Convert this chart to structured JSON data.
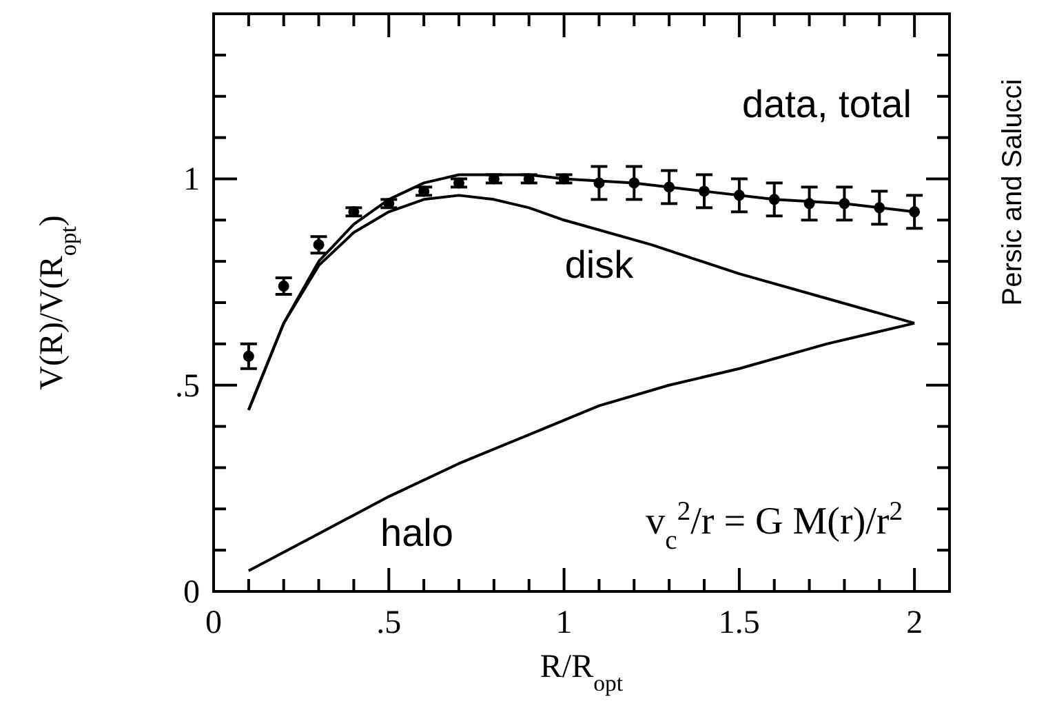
{
  "chart_data": {
    "type": "scatter",
    "xlabel": "R/R$_{opt}$",
    "ylabel": "V(R)/V(R$_{opt}$)",
    "xlim": [
      0,
      2.1
    ],
    "ylim": [
      0,
      1.4
    ],
    "xticks": [
      0,
      {
        "value": 0.1,
        "label": null
      },
      {
        "value": 0.2,
        "label": null
      },
      {
        "value": 0.3,
        "label": null
      },
      {
        "value": 0.4,
        "label": null
      },
      {
        "value": 0.5,
        "label": ".5"
      },
      {
        "value": 0.6,
        "label": null
      },
      {
        "value": 0.7,
        "label": null
      },
      {
        "value": 0.8,
        "label": null
      },
      {
        "value": 0.9,
        "label": null
      },
      1,
      {
        "value": 1.1,
        "label": null
      },
      {
        "value": 1.2,
        "label": null
      },
      {
        "value": 1.3,
        "label": null
      },
      {
        "value": 1.4,
        "label": null
      },
      1.5,
      {
        "value": 1.6,
        "label": null
      },
      {
        "value": 1.7,
        "label": null
      },
      {
        "value": 1.8,
        "label": null
      },
      {
        "value": 1.9,
        "label": null
      },
      2,
      {
        "value": 2.1,
        "label": null
      }
    ],
    "yticks": [
      0,
      {
        "value": 0.1,
        "label": null
      },
      {
        "value": 0.2,
        "label": null
      },
      {
        "value": 0.3,
        "label": null
      },
      {
        "value": 0.4,
        "label": null
      },
      {
        "value": 0.5,
        "label": ".5"
      },
      {
        "value": 0.6,
        "label": null
      },
      {
        "value": 0.7,
        "label": null
      },
      {
        "value": 0.8,
        "label": null
      },
      {
        "value": 0.9,
        "label": null
      },
      1,
      {
        "value": 1.1,
        "label": null
      },
      {
        "value": 1.2,
        "label": null
      },
      {
        "value": 1.3,
        "label": null
      },
      {
        "value": 1.4,
        "label": null
      }
    ],
    "series": [
      {
        "type": "line",
        "color": "#000000",
        "x": [
          0.1,
          0.2,
          0.3,
          0.4,
          0.5,
          0.6,
          0.7,
          0.8,
          0.9,
          1.0,
          1.2,
          1.4,
          1.6,
          1.8,
          2.0
        ],
        "values": [
          0.44,
          0.65,
          0.8,
          0.89,
          0.95,
          0.99,
          1.01,
          1.01,
          1.01,
          1.0,
          0.99,
          0.97,
          0.95,
          0.94,
          0.92
        ]
      },
      {
        "type": "line",
        "color": "#000000",
        "x": [
          0.1,
          0.2,
          0.3,
          0.4,
          0.5,
          0.6,
          0.7,
          0.8,
          0.9,
          1.0,
          1.25,
          1.5,
          1.75,
          2.0
        ],
        "values": [
          0.44,
          0.65,
          0.79,
          0.87,
          0.92,
          0.95,
          0.96,
          0.95,
          0.93,
          0.9,
          0.84,
          0.77,
          0.71,
          0.65
        ]
      },
      {
        "type": "line",
        "color": "#000000",
        "x": [
          0.1,
          0.3,
          0.5,
          0.7,
          0.9,
          1.1,
          1.3,
          1.5,
          1.75,
          2.0
        ],
        "values": [
          0.05,
          0.14,
          0.23,
          0.31,
          0.38,
          0.45,
          0.5,
          0.54,
          0.6,
          0.65
        ]
      },
      {
        "color": "#000000",
        "marker": "circle",
        "x": [
          0.1,
          0.2,
          0.3,
          0.4,
          0.5,
          0.6,
          0.7,
          0.8,
          0.9,
          1.0,
          1.1,
          1.2,
          1.3,
          1.4,
          1.5,
          1.6,
          1.7,
          1.8,
          1.9,
          2.0
        ],
        "values": [
          0.57,
          0.74,
          0.84,
          0.92,
          0.94,
          0.97,
          0.99,
          1.0,
          1.0,
          1.0,
          0.99,
          0.99,
          0.98,
          0.97,
          0.96,
          0.95,
          0.94,
          0.94,
          0.93,
          0.92
        ],
        "errors": [
          0.03,
          0.02,
          0.02,
          0.01,
          0.01,
          0.01,
          0.01,
          0.01,
          0.01,
          0.01,
          0.04,
          0.04,
          0.04,
          0.04,
          0.04,
          0.04,
          0.04,
          0.04,
          0.04,
          0.04
        ]
      }
    ],
    "annotations": [
      "data, total",
      "disk",
      "halo",
      "v$_{c}$$^{2}$/r = G M(r)/r$^{2}$",
      "Persic and Salucci"
    ]
  }
}
